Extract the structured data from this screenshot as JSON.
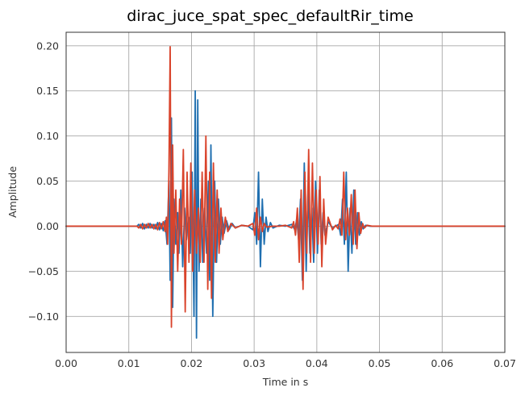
{
  "chart_data": {
    "type": "line",
    "title": "dirac_juce_spat_spec_defaultRir_time",
    "xlabel": "Time in s",
    "ylabel": "Amplitude",
    "xlim": [
      0.0,
      0.07
    ],
    "ylim": [
      -0.14,
      0.215
    ],
    "xticks": [
      0.0,
      0.01,
      0.02,
      0.03,
      0.04,
      0.05,
      0.06,
      0.07
    ],
    "xtick_labels": [
      "0.00",
      "0.01",
      "0.02",
      "0.03",
      "0.04",
      "0.05",
      "0.06",
      "0.07"
    ],
    "yticks": [
      -0.1,
      -0.05,
      0.0,
      0.05,
      0.1,
      0.15,
      0.2
    ],
    "ytick_labels": [
      "−0.10",
      "−0.05",
      "0.00",
      "0.05",
      "0.10",
      "0.15",
      "0.20"
    ],
    "grid": true,
    "series": [
      {
        "color": "#1f6fb0",
        "x": [
          0.0,
          0.0113,
          0.0116,
          0.0119,
          0.0122,
          0.0125,
          0.0128,
          0.0131,
          0.0134,
          0.0137,
          0.014,
          0.0143,
          0.0146,
          0.0149,
          0.0152,
          0.0155,
          0.0158,
          0.0161,
          0.0164,
          0.0166,
          0.0168,
          0.017,
          0.0172,
          0.0175,
          0.0178,
          0.018,
          0.0183,
          0.0186,
          0.0189,
          0.0192,
          0.0195,
          0.0198,
          0.0201,
          0.0204,
          0.0206,
          0.0208,
          0.021,
          0.0212,
          0.0215,
          0.0218,
          0.0221,
          0.0224,
          0.0227,
          0.0229,
          0.0231,
          0.0234,
          0.0237,
          0.024,
          0.0243,
          0.0246,
          0.0249,
          0.0252,
          0.0256,
          0.026,
          0.0265,
          0.027,
          0.028,
          0.029,
          0.0298,
          0.0301,
          0.0304,
          0.0307,
          0.031,
          0.0313,
          0.0316,
          0.0319,
          0.0322,
          0.0326,
          0.033,
          0.034,
          0.035,
          0.036,
          0.0365,
          0.0368,
          0.0371,
          0.0374,
          0.0377,
          0.038,
          0.0383,
          0.0386,
          0.0389,
          0.0392,
          0.0395,
          0.0398,
          0.0401,
          0.0404,
          0.0407,
          0.041,
          0.0413,
          0.0418,
          0.0425,
          0.043,
          0.0435,
          0.0438,
          0.0441,
          0.0444,
          0.0447,
          0.045,
          0.0453,
          0.0456,
          0.0459,
          0.0462,
          0.0465,
          0.0468,
          0.0471,
          0.0474,
          0.0478,
          0.0485,
          0.05,
          0.07
        ],
        "y": [
          0.0,
          0.0,
          0.002,
          -0.002,
          0.003,
          -0.003,
          0.002,
          -0.002,
          0.003,
          -0.002,
          0.002,
          -0.003,
          0.004,
          -0.004,
          0.003,
          -0.005,
          0.006,
          -0.02,
          0.05,
          -0.06,
          0.12,
          -0.09,
          0.03,
          -0.02,
          0.015,
          -0.03,
          0.04,
          -0.045,
          0.02,
          -0.015,
          0.01,
          -0.03,
          0.06,
          -0.1,
          0.15,
          -0.124,
          0.14,
          -0.05,
          0.03,
          -0.04,
          0.02,
          -0.03,
          0.05,
          -0.06,
          0.09,
          -0.1,
          0.05,
          -0.04,
          0.03,
          -0.02,
          0.01,
          -0.008,
          0.006,
          -0.004,
          0.003,
          -0.002,
          0.001,
          0.0,
          -0.004,
          0.015,
          -0.02,
          0.06,
          -0.045,
          0.03,
          -0.02,
          0.01,
          -0.006,
          0.004,
          -0.002,
          0.001,
          0.0,
          0.002,
          -0.004,
          0.008,
          -0.015,
          0.03,
          -0.06,
          0.07,
          -0.05,
          0.04,
          -0.03,
          0.02,
          -0.04,
          0.05,
          -0.03,
          0.04,
          -0.02,
          0.015,
          -0.01,
          0.005,
          -0.002,
          0.0,
          0.002,
          -0.01,
          0.03,
          -0.02,
          0.06,
          -0.05,
          0.02,
          -0.03,
          0.04,
          -0.02,
          0.015,
          -0.01,
          0.005,
          -0.003,
          0.001,
          0.0,
          0.0,
          0.0
        ]
      },
      {
        "color": "#d9432b",
        "x": [
          0.0,
          0.0113,
          0.0116,
          0.0119,
          0.0122,
          0.0125,
          0.0128,
          0.0131,
          0.0134,
          0.0137,
          0.014,
          0.0143,
          0.0146,
          0.0149,
          0.0152,
          0.0155,
          0.0158,
          0.016,
          0.0162,
          0.0164,
          0.0166,
          0.0168,
          0.017,
          0.0172,
          0.0175,
          0.0178,
          0.0181,
          0.0184,
          0.0187,
          0.019,
          0.0193,
          0.0196,
          0.0199,
          0.0202,
          0.0205,
          0.0208,
          0.0211,
          0.0214,
          0.0217,
          0.022,
          0.0223,
          0.0226,
          0.0229,
          0.0232,
          0.0235,
          0.0238,
          0.0241,
          0.0244,
          0.0247,
          0.025,
          0.0254,
          0.0258,
          0.0263,
          0.027,
          0.028,
          0.029,
          0.0298,
          0.0301,
          0.0304,
          0.0307,
          0.031,
          0.0313,
          0.0316,
          0.032,
          0.033,
          0.034,
          0.035,
          0.036,
          0.0363,
          0.0366,
          0.0369,
          0.0372,
          0.0375,
          0.0378,
          0.0381,
          0.0384,
          0.0387,
          0.039,
          0.0393,
          0.0396,
          0.0399,
          0.0402,
          0.0405,
          0.0408,
          0.0411,
          0.0414,
          0.0418,
          0.0425,
          0.043,
          0.0434,
          0.0437,
          0.044,
          0.0443,
          0.0446,
          0.0449,
          0.0452,
          0.0455,
          0.0458,
          0.0461,
          0.0464,
          0.0467,
          0.047,
          0.0473,
          0.0476,
          0.048,
          0.0488,
          0.05,
          0.07
        ],
        "y": [
          0.0,
          0.0,
          -0.002,
          0.002,
          -0.003,
          0.002,
          -0.002,
          0.003,
          -0.002,
          0.002,
          -0.003,
          0.002,
          -0.004,
          0.004,
          -0.003,
          0.005,
          -0.006,
          0.01,
          -0.02,
          0.06,
          0.199,
          -0.112,
          0.09,
          -0.03,
          0.04,
          -0.05,
          0.03,
          -0.02,
          0.085,
          -0.095,
          0.06,
          -0.04,
          0.07,
          -0.05,
          0.04,
          -0.03,
          0.02,
          -0.04,
          0.06,
          -0.04,
          0.1,
          -0.07,
          0.06,
          -0.08,
          0.07,
          -0.04,
          0.04,
          -0.03,
          0.02,
          -0.015,
          0.01,
          -0.006,
          0.003,
          -0.002,
          0.001,
          0.0,
          0.003,
          -0.01,
          0.02,
          -0.015,
          0.01,
          -0.006,
          0.003,
          -0.001,
          0.0,
          0.0,
          0.001,
          -0.002,
          0.005,
          -0.01,
          0.02,
          -0.04,
          0.04,
          -0.07,
          0.06,
          -0.03,
          0.085,
          -0.04,
          0.07,
          -0.03,
          0.04,
          -0.02,
          0.055,
          -0.045,
          0.03,
          -0.02,
          0.01,
          -0.004,
          0.001,
          -0.003,
          0.008,
          -0.01,
          0.06,
          -0.015,
          0.02,
          -0.01,
          0.035,
          -0.02,
          0.04,
          -0.025,
          0.015,
          -0.008,
          0.003,
          -0.002,
          0.001,
          0.0,
          0.0,
          0.0
        ]
      }
    ]
  }
}
